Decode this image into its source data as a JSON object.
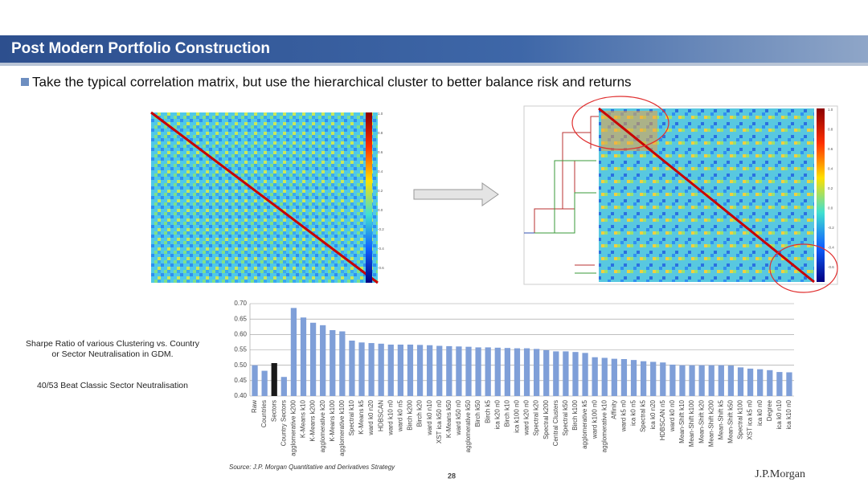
{
  "slide": {
    "title": "Post Modern Portfolio Construction",
    "bullet": "Take the typical correlation matrix, but use the hierarchical cluster to better balance risk and returns",
    "side_text": [
      "Sharpe Ratio of various Clustering vs. Country",
      "or Sector Neutralisation in GDM."
    ],
    "side_result": "40/53 Beat Classic Sector Neutralisation",
    "source": "Source: J.P. Morgan Quantitative and Derivatives Strategy",
    "page_number": "28",
    "logo": "J.P.Morgan",
    "colorbar_ticks": [
      "1.0",
      "0.8",
      "0.6",
      "0.4",
      "0.2",
      "0.0",
      "-0.2",
      "-0.4",
      "-0.6"
    ]
  },
  "chart_data": {
    "type": "bar",
    "categories": [
      "Raw",
      "Countries",
      "Sectors",
      "Country Sectors",
      "agglomerative k200",
      "K-Means k10",
      "K-Means k200",
      "agglomerative k20",
      "K-Means k100",
      "agglomerative k100",
      "Spectral k10",
      "K-Means k5",
      "ward k0 n20",
      "HDBSCAN",
      "ward k10 n0",
      "ward k0 n5",
      "Birch k200",
      "Birch k20",
      "ward k0 n10",
      "XST ica k50 n0",
      "K-Means k50",
      "ward k50 n0",
      "agglomerative k50",
      "Birch k50",
      "Birch k5",
      "ica k20 n0",
      "Birch k10",
      "ica k100 n0",
      "ward k20 n0",
      "Spectral k20",
      "Spectral k200",
      "Central Clusters",
      "Spectral k50",
      "Birch k100",
      "agglomerative k5",
      "ward k100 n0",
      "agglomerative k10",
      "Affinity",
      "ward k5 n0",
      "ica k0 n5",
      "Spectral k5",
      "ica k0 n20",
      "HDBSCAN n5",
      "ward k0 n0",
      "Mean-Shift k10",
      "Mean-Shift k100",
      "Mean-Shift k20",
      "Mean-Shift k200",
      "Mean-Shift k5",
      "Mean-Shift k50",
      "Spectral k100",
      "XST ica k5 n0",
      "ica k0 n0",
      "Degree",
      "ica k0 n10",
      "ica k10 n0"
    ],
    "values": [
      0.5,
      0.482,
      0.507,
      0.462,
      0.686,
      0.655,
      0.638,
      0.63,
      0.614,
      0.61,
      0.58,
      0.574,
      0.572,
      0.57,
      0.567,
      0.567,
      0.567,
      0.566,
      0.565,
      0.563,
      0.562,
      0.561,
      0.56,
      0.558,
      0.558,
      0.557,
      0.556,
      0.555,
      0.555,
      0.553,
      0.549,
      0.545,
      0.545,
      0.543,
      0.54,
      0.526,
      0.524,
      0.521,
      0.52,
      0.517,
      0.513,
      0.511,
      0.509,
      0.502,
      0.5,
      0.5,
      0.5,
      0.5,
      0.5,
      0.499,
      0.493,
      0.489,
      0.487,
      0.484,
      0.478,
      0.477
    ],
    "colors": [
      "#7f9fd8",
      "#7f9fd8",
      "#1a1a1a",
      "#7f9fd8",
      "#7f9fd8",
      "#7f9fd8",
      "#7f9fd8",
      "#7f9fd8",
      "#7f9fd8",
      "#7f9fd8",
      "#7f9fd8",
      "#7f9fd8",
      "#7f9fd8",
      "#7f9fd8",
      "#7f9fd8",
      "#7f9fd8",
      "#7f9fd8",
      "#7f9fd8",
      "#7f9fd8",
      "#7f9fd8",
      "#7f9fd8",
      "#7f9fd8",
      "#7f9fd8",
      "#7f9fd8",
      "#7f9fd8",
      "#7f9fd8",
      "#7f9fd8",
      "#7f9fd8",
      "#7f9fd8",
      "#7f9fd8",
      "#7f9fd8",
      "#7f9fd8",
      "#7f9fd8",
      "#7f9fd8",
      "#7f9fd8",
      "#7f9fd8",
      "#7f9fd8",
      "#7f9fd8",
      "#7f9fd8",
      "#7f9fd8",
      "#7f9fd8",
      "#7f9fd8",
      "#7f9fd8",
      "#7f9fd8",
      "#7f9fd8",
      "#7f9fd8",
      "#7f9fd8",
      "#7f9fd8",
      "#7f9fd8",
      "#7f9fd8",
      "#7f9fd8",
      "#7f9fd8",
      "#7f9fd8",
      "#7f9fd8",
      "#7f9fd8",
      "#7f9fd8"
    ],
    "ylim": [
      0.4,
      0.7
    ],
    "yticks": [
      {
        "value": 0.4,
        "label": "0.40"
      },
      {
        "value": 0.45,
        "label": "0.45"
      },
      {
        "value": 0.5,
        "label": "0.50"
      },
      {
        "value": 0.55,
        "label": "0.55"
      },
      {
        "value": 0.6,
        "label": "0.60"
      },
      {
        "value": 0.65,
        "label": "0.65"
      },
      {
        "value": 0.7,
        "label": "0.70"
      }
    ],
    "grid": true
  }
}
